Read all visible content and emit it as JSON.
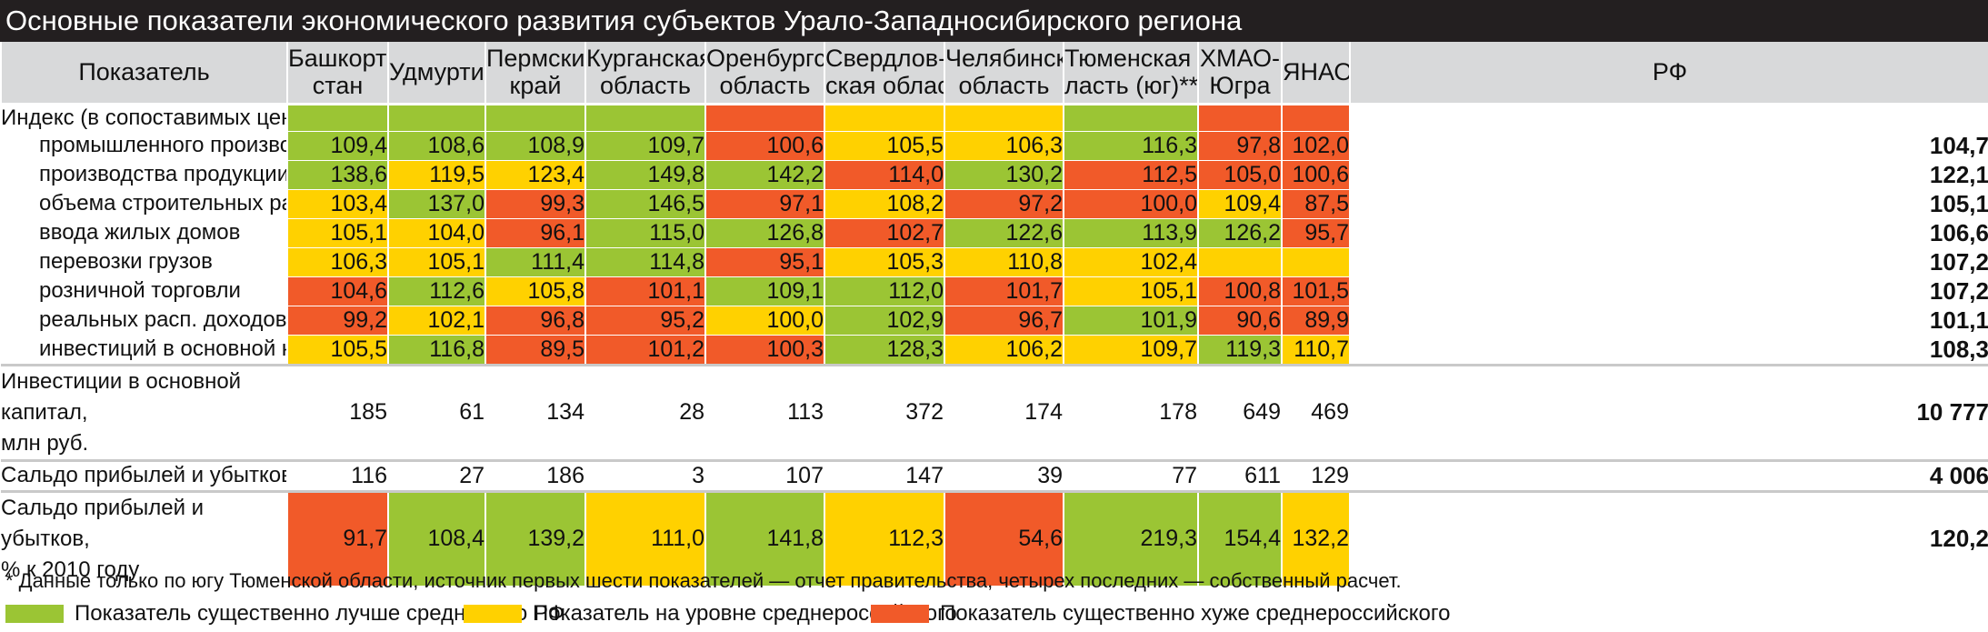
{
  "title": "Основные показатели экономического развития субъектов Урало-Западносибирского региона",
  "columns": [
    {
      "line1": "Показатель",
      "line2": ""
    },
    {
      "line1": "Башкорто-",
      "line2": "стан"
    },
    {
      "line1": "Удмуртия",
      "line2": ""
    },
    {
      "line1": "Пермский",
      "line2": "край"
    },
    {
      "line1": "Курганская",
      "line2": "область"
    },
    {
      "line1": "Оренбургская",
      "line2": "область"
    },
    {
      "line1": "Свердлов-",
      "line2": "ская область"
    },
    {
      "line1": "Челябинская",
      "line2": "область"
    },
    {
      "line1": "Тюменская об-",
      "line2": "ласть (юг)**"
    },
    {
      "line1": "ХМАО-",
      "line2": "Югра"
    },
    {
      "line1": "ЯНАО",
      "line2": ""
    },
    {
      "line1": "РФ",
      "line2": ""
    }
  ],
  "index_header": {
    "label": "Индекс (в сопоставимых ценах)",
    "colors": [
      "g",
      "g",
      "g",
      "g",
      "r",
      "y",
      "y",
      "g",
      "r",
      "r"
    ]
  },
  "index_rows": [
    {
      "label": "промышленного производства",
      "values": [
        "109,4",
        "108,6",
        "108,9",
        "109,7",
        "100,6",
        "105,5",
        "106,3",
        "116,3",
        "97,8",
        "102,0"
      ],
      "colors": [
        "g",
        "g",
        "g",
        "g",
        "r",
        "y",
        "y",
        "g",
        "r",
        "r"
      ],
      "rf": "104,7"
    },
    {
      "label": "производства продукции с/х",
      "values": [
        "138,6",
        "119,5",
        "123,4",
        "149,8",
        "142,2",
        "114,0",
        "130,2",
        "112,5",
        "105,0",
        "100,6"
      ],
      "colors": [
        "g",
        "y",
        "y",
        "g",
        "g",
        "r",
        "g",
        "r",
        "r",
        "r"
      ],
      "rf": "122,1"
    },
    {
      "label": "объема строительных работ",
      "values": [
        "103,4",
        "137,0",
        "99,3",
        "146,5",
        "97,1",
        "108,2",
        "97,2",
        "100,0",
        "109,4",
        "87,5"
      ],
      "colors": [
        "y",
        "g",
        "r",
        "g",
        "r",
        "y",
        "r",
        "r",
        "y",
        "r"
      ],
      "rf": "105,1"
    },
    {
      "label": "ввода жилых домов",
      "values": [
        "105,1",
        "104,0",
        "96,1",
        "115,0",
        "126,8",
        "102,7",
        "122,6",
        "113,9",
        "126,2",
        "95,7"
      ],
      "colors": [
        "y",
        "y",
        "r",
        "g",
        "g",
        "r",
        "g",
        "g",
        "g",
        "r"
      ],
      "rf": "106,6"
    },
    {
      "label": "перевозки грузов",
      "values": [
        "106,3",
        "105,1",
        "111,4",
        "114,8",
        "95,1",
        "105,3",
        "110,8",
        "102,4",
        "",
        ""
      ],
      "colors": [
        "y",
        "y",
        "g",
        "g",
        "r",
        "y",
        "y",
        "y",
        "y",
        "y"
      ],
      "rf": "107,2"
    },
    {
      "label": "розничной торговли",
      "values": [
        "104,6",
        "112,6",
        "105,8",
        "101,1",
        "109,1",
        "112,0",
        "101,7",
        "105,1",
        "100,8",
        "101,5"
      ],
      "colors": [
        "r",
        "g",
        "y",
        "r",
        "g",
        "g",
        "r",
        "y",
        "r",
        "r"
      ],
      "rf": "107,2"
    },
    {
      "label": "реальных расп. доходов населения",
      "values": [
        "99,2",
        "102,1",
        "96,8",
        "95,2",
        "100,0",
        "102,9",
        "96,7",
        "101,9",
        "90,6",
        "89,9"
      ],
      "colors": [
        "r",
        "y",
        "r",
        "r",
        "y",
        "g",
        "r",
        "g",
        "r",
        "r"
      ],
      "rf": "101,1"
    },
    {
      "label": "инвестиций в основной капитал",
      "values": [
        "105,5",
        "116,8",
        "89,5",
        "101,2",
        "100,3",
        "128,3",
        "106,2",
        "109,7",
        "119,3",
        "110,7"
      ],
      "colors": [
        "y",
        "g",
        "r",
        "r",
        "r",
        "g",
        "y",
        "y",
        "g",
        "y"
      ],
      "rf": "108,3"
    }
  ],
  "invest_row": {
    "label1": "Инвестиции в основной капитал,",
    "label2": "млн руб.",
    "values": [
      "185",
      "61",
      "134",
      "28",
      "113",
      "372",
      "174",
      "178",
      "649",
      "469"
    ],
    "rf": "10 777"
  },
  "profit_row": {
    "label": "Сальдо прибылей и убытков, млн руб.",
    "values": [
      "116",
      "27",
      "186",
      "3",
      "107",
      "147",
      "39",
      "77",
      "611",
      "129"
    ],
    "rf": "4 006"
  },
  "profit_pct_row": {
    "label1": "Сальдо прибылей и убытков,",
    "label2": "% к 2010 году",
    "values": [
      "91,7",
      "108,4",
      "139,2",
      "111,0",
      "141,8",
      "112,3",
      "54,6",
      "219,3",
      "154,4",
      "132,2"
    ],
    "colors": [
      "r",
      "g",
      "g",
      "y",
      "g",
      "y",
      "r",
      "g",
      "g",
      "y"
    ],
    "rf": "120,2"
  },
  "footnote": "* Данные только по югу Тюменской области, источник первых шести показателей — отчет правительства, четырех последних — собственный расчет.",
  "legend": [
    {
      "color": "#9bc534",
      "label": "Показатель существенно лучше среднего по РФ"
    },
    {
      "color": "#ffd100",
      "label": "Показатель на уровне среднероссийского"
    },
    {
      "color": "#f15a29",
      "label": "Показатель существенно хуже среднероссийского"
    }
  ]
}
